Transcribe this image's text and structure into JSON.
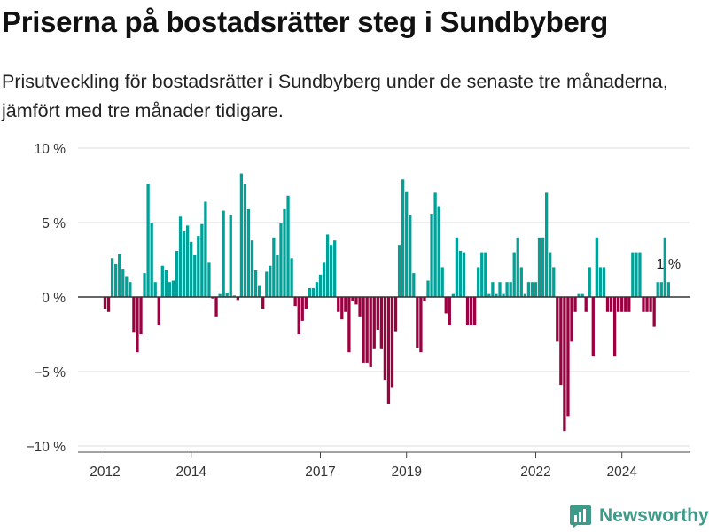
{
  "title": "Priserna på bostadsrätter steg i Sundbyberg",
  "subtitle": "Prisutveckling för bostadsrätter i Sundbyberg under de senaste tre månaderna, jämfört med tre månader tidigare.",
  "brand": {
    "name": "Newsworthy",
    "color": "#3e9b8a"
  },
  "colors": {
    "positive": "#00a199",
    "negative": "#9b0041",
    "zero_line": "#333333",
    "grid": "#dddddd"
  },
  "chart_data": {
    "type": "bar",
    "title": "Priserna på bostadsrätter steg i Sundbyberg",
    "xlabel": "",
    "ylabel": "",
    "ylim": [
      -10,
      10
    ],
    "y_ticks": [
      10,
      5,
      0,
      -5,
      -10
    ],
    "y_tick_labels": [
      "10 %",
      "5 %",
      "0 %",
      "−5 %",
      "−10 %"
    ],
    "x_ticks": [
      "2012",
      "2014",
      "2017",
      "2019",
      "2022",
      "2024"
    ],
    "x_start": "2012-01",
    "grid": "horizontal",
    "annotation": {
      "text": "1 %",
      "target": "last"
    },
    "values": [
      -0.8,
      -1.0,
      2.6,
      2.2,
      2.9,
      1.9,
      1.4,
      1.0,
      -2.4,
      -3.7,
      -2.5,
      1.6,
      7.6,
      5.0,
      1.0,
      -1.9,
      2.1,
      1.8,
      1.0,
      1.1,
      3.1,
      5.4,
      4.4,
      4.8,
      3.7,
      2.8,
      4.1,
      4.9,
      6.4,
      2.3,
      -0.1,
      -1.3,
      0.2,
      5.8,
      0.3,
      5.5,
      0.1,
      -0.2,
      8.3,
      7.6,
      5.9,
      3.8,
      1.8,
      0.8,
      -0.8,
      1.7,
      2.1,
      4.0,
      2.8,
      5.0,
      5.9,
      6.8,
      2.6,
      -0.6,
      -2.5,
      -1.6,
      -0.8,
      0.6,
      0.6,
      1.0,
      1.5,
      2.3,
      4.2,
      3.5,
      3.8,
      -1.0,
      -1.5,
      -1.0,
      -3.7,
      -0.3,
      -0.5,
      -1.3,
      -4.4,
      -4.4,
      -4.7,
      -3.5,
      -2.2,
      -3.5,
      -5.6,
      -7.2,
      -6.1,
      -2.3,
      3.5,
      7.9,
      7.1,
      5.5,
      1.6,
      -3.4,
      -3.7,
      -0.3,
      1.1,
      5.6,
      7.0,
      6.1,
      2.0,
      -1.1,
      -1.9,
      0.2,
      4.0,
      3.1,
      3.0,
      -1.9,
      -1.9,
      -1.9,
      2.0,
      3.0,
      3.0,
      0.2,
      1.0,
      0.2,
      1.0,
      0.2,
      1.0,
      1.0,
      3.0,
      4.0,
      2.0,
      0.2,
      1.0,
      1.0,
      1.0,
      4.0,
      4.0,
      7.0,
      3.0,
      2.0,
      -3.0,
      -5.9,
      -9.0,
      -8.0,
      -3.0,
      -1.0,
      0.2,
      0.2,
      -1.0,
      2.0,
      -4.0,
      4.0,
      2.0,
      2.0,
      -1.0,
      -1.0,
      -4.0,
      -1.0,
      -1.0,
      -1.0,
      -1.0,
      3.0,
      3.0,
      3.0,
      -1.0,
      -1.0,
      -1.0,
      -2.0,
      1.0,
      1.0,
      4.0,
      1.0
    ]
  }
}
